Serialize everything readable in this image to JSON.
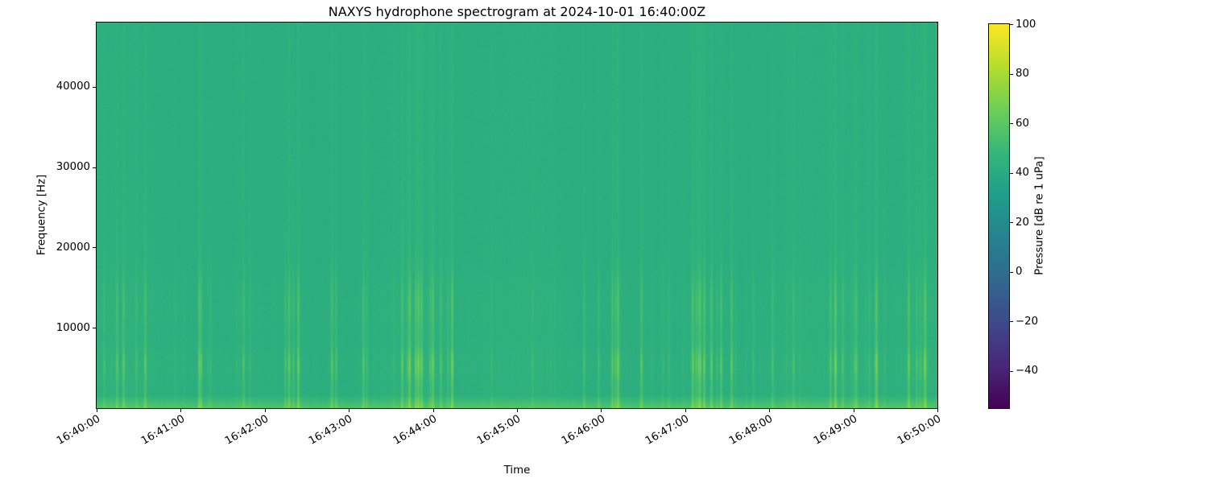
{
  "chart_data": {
    "type": "heatmap",
    "title": "NAXYS hydrophone spectrogram at 2024-10-01 16:40:00Z",
    "xlabel": "Time",
    "ylabel": "Frequency [Hz]",
    "x_tick_labels": [
      "16:40:00",
      "16:41:00",
      "16:42:00",
      "16:43:00",
      "16:44:00",
      "16:45:00",
      "16:46:00",
      "16:47:00",
      "16:48:00",
      "16:49:00",
      "16:50:00"
    ],
    "y_tick_values": [
      10000,
      20000,
      30000,
      40000
    ],
    "y_axis_range_hz": [
      0,
      48000
    ],
    "x_tick_rotation_deg": 30,
    "grid": false,
    "legend": null,
    "colorbar": {
      "label": "Pressure [dB re 1 uPa]",
      "tick_values": [
        100,
        80,
        60,
        40,
        20,
        0,
        -20,
        -40
      ],
      "range_db": [
        -55,
        100
      ],
      "colormap": "viridis",
      "colormap_stops": [
        "#440154",
        "#482878",
        "#3e4989",
        "#31688e",
        "#26828e",
        "#1f9e89",
        "#35b779",
        "#6ece58",
        "#b5de2b",
        "#fde725"
      ]
    },
    "content": {
      "description": "Mostly uniform ~40-45 dB green background across 0-48 kHz with frequent narrow broadband transient clicks (snapping-shrimp-like) reaching ~70-85 dB, concentrated below ~20 kHz with peaks near 5.5 kHz and 13 kHz, plus an elevated bright band below ~1.5 kHz along the bottom edge.",
      "background_level_db": 42,
      "low_freq_band_top_hz": 1500,
      "low_freq_band_boost_db": 14,
      "transient_probability_per_column": 0.1,
      "transient_gain_db_max": 40,
      "transient_peak_freqs_hz": [
        5500,
        13000
      ],
      "seed": 42
    }
  }
}
